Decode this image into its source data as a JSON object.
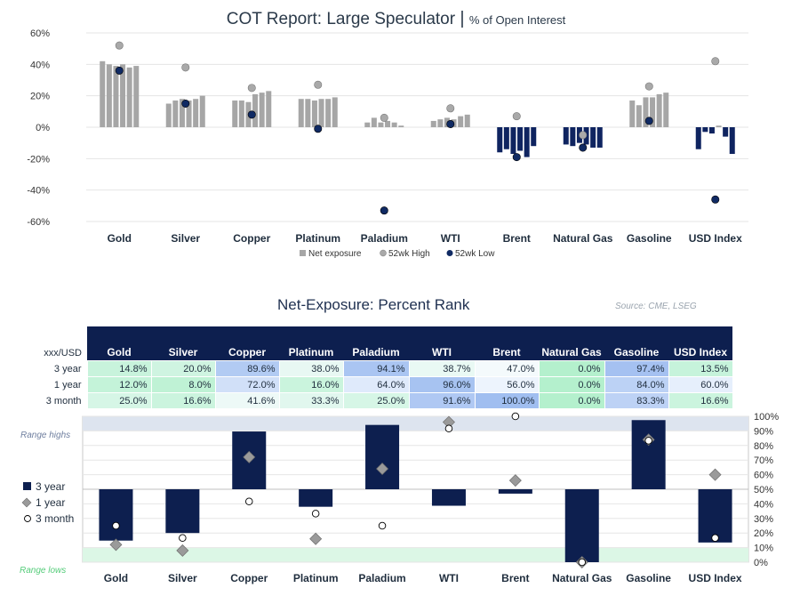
{
  "chart_data": [
    {
      "type": "bar",
      "title": "COT Report: Large Speculator",
      "title_separator": "|",
      "subtitle": "% of Open Interest",
      "categories": [
        "Gold",
        "Silver",
        "Copper",
        "Platinum",
        "Paladium",
        "WTI",
        "Brent",
        "Natural Gas",
        "Gasoline",
        "USD Index"
      ],
      "ylim": [
        -60,
        60
      ],
      "yticks": [
        "-60%",
        "-40%",
        "-20%",
        "0%",
        "20%",
        "40%",
        "60%"
      ],
      "ytick_values": [
        -60,
        -40,
        -20,
        0,
        20,
        40,
        60
      ],
      "grid": true,
      "legend": [
        "Net exposure",
        "52wk High",
        "52wk Low"
      ],
      "legend_position": "bottom",
      "colors": {
        "positive": "#a6a6a6",
        "negative": "#0f2460",
        "high": "#a9a9a9",
        "low": "#102a63"
      },
      "net_exposure": [
        [
          42,
          40,
          39,
          40,
          38,
          39
        ],
        [
          15,
          17,
          18,
          17,
          18,
          20
        ],
        [
          17,
          17,
          16,
          21,
          22,
          23
        ],
        [
          18,
          18,
          17,
          18,
          18,
          19
        ],
        [
          3,
          6,
          3,
          4,
          3,
          1
        ],
        [
          4,
          5,
          6,
          5,
          7,
          8
        ],
        [
          -16,
          -14,
          -17,
          -15,
          -19,
          -12
        ],
        [
          -11,
          -12,
          -10,
          -11,
          -13,
          -13
        ],
        [
          17,
          14,
          19,
          19,
          21,
          22
        ],
        [
          -14,
          -3,
          -4,
          1,
          -6,
          -17
        ]
      ],
      "high_52wk": [
        52,
        38,
        25,
        27,
        6,
        12,
        7,
        -5,
        26,
        42
      ],
      "low_52wk": [
        36,
        15,
        8,
        -1,
        -53,
        2,
        -19,
        -13,
        4,
        -46
      ]
    },
    {
      "type": "table",
      "title": "Net-Exposure: Percent Rank",
      "source": "Source: CME, LSEG",
      "corner_label": "xxx/USD",
      "columns": [
        "Gold",
        "Silver",
        "Copper",
        "Platinum",
        "Paladium",
        "WTI",
        "Brent",
        "Natural Gas",
        "Gasoline",
        "USD Index"
      ],
      "rows": [
        {
          "label": "3 year",
          "values": [
            "14.8%",
            "20.0%",
            "89.6%",
            "38.0%",
            "94.1%",
            "38.7%",
            "47.0%",
            "0.0%",
            "97.4%",
            "13.5%"
          ]
        },
        {
          "label": "1 year",
          "values": [
            "12.0%",
            "8.0%",
            "72.0%",
            "16.0%",
            "64.0%",
            "96.0%",
            "56.0%",
            "0.0%",
            "84.0%",
            "60.0%"
          ]
        },
        {
          "label": "3 month",
          "values": [
            "25.0%",
            "16.6%",
            "41.6%",
            "33.3%",
            "25.0%",
            "91.6%",
            "100.0%",
            "0.0%",
            "83.3%",
            "16.6%"
          ]
        }
      ],
      "values_numeric": [
        [
          14.8,
          20.0,
          89.6,
          38.0,
          94.1,
          38.7,
          47.0,
          0.0,
          97.4,
          13.5
        ],
        [
          12.0,
          8.0,
          72.0,
          16.0,
          64.0,
          96.0,
          56.0,
          0.0,
          84.0,
          60.0
        ],
        [
          25.0,
          16.6,
          41.6,
          33.3,
          25.0,
          91.6,
          100.0,
          0.0,
          83.3,
          16.6
        ]
      ]
    },
    {
      "type": "bar",
      "categories": [
        "Gold",
        "Silver",
        "Copper",
        "Platinum",
        "Paladium",
        "WTI",
        "Brent",
        "Natural Gas",
        "Gasoline",
        "USD Index"
      ],
      "ylim": [
        0,
        100
      ],
      "baseline": 50,
      "yticks": [
        "0%",
        "10%",
        "20%",
        "30%",
        "40%",
        "50%",
        "60%",
        "70%",
        "80%",
        "90%",
        "100%"
      ],
      "ytick_values": [
        0,
        10,
        20,
        30,
        40,
        50,
        60,
        70,
        80,
        90,
        100
      ],
      "band_high_label": "Range highs",
      "band_low_label": "Range lows",
      "band_high": [
        90,
        100
      ],
      "band_low": [
        0,
        10
      ],
      "legend": [
        "3 year",
        "1 year",
        "3 month"
      ],
      "legend_position": "left",
      "colors": {
        "bar": "#0d1f4f",
        "diamond": "#9a9a9a",
        "band_high": "#dde4ef",
        "band_low": "#dcf7e6"
      },
      "series": [
        {
          "name": "3 year",
          "values": [
            14.8,
            20.0,
            89.6,
            38.0,
            94.1,
            38.7,
            47.0,
            0.0,
            97.4,
            13.5
          ]
        },
        {
          "name": "1 year",
          "values": [
            12.0,
            8.0,
            72.0,
            16.0,
            64.0,
            96.0,
            56.0,
            0.0,
            84.0,
            60.0
          ]
        },
        {
          "name": "3 month",
          "values": [
            25.0,
            16.6,
            41.6,
            33.3,
            25.0,
            91.6,
            100.0,
            0.0,
            83.3,
            16.6
          ]
        }
      ]
    }
  ]
}
